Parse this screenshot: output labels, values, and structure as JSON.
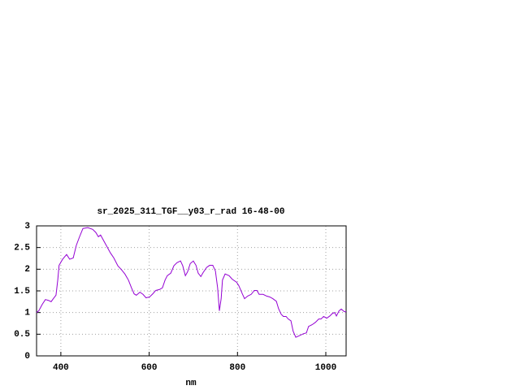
{
  "chart_data": {
    "type": "line",
    "title": "sr_2025_311_TGF__y03_r_rad 16-48-00",
    "xlabel": "nm",
    "xlim": [
      345,
      1046
    ],
    "xticks": [
      400,
      600,
      800,
      1000
    ],
    "ylim": [
      0,
      3
    ],
    "yticks": [
      0,
      0.5,
      1,
      1.5,
      2,
      2.5,
      3
    ],
    "grid": true,
    "series": [
      {
        "color": "#9400d3",
        "x": [
          345,
          350,
          358,
          365,
          372,
          378,
          383,
          389,
          393,
          396,
          404,
          413,
          420,
          428,
          435,
          442,
          450,
          461,
          472,
          479,
          485,
          490,
          498,
          505,
          512,
          520,
          529,
          538,
          545,
          553,
          560,
          566,
          571,
          579,
          586,
          593,
          601,
          608,
          615,
          623,
          630,
          636,
          641,
          649,
          656,
          663,
          671,
          676,
          682,
          687,
          693,
          700,
          706,
          711,
          717,
          722,
          730,
          737,
          744,
          750,
          755,
          759,
          763,
          766,
          772,
          781,
          788,
          798,
          803,
          811,
          816,
          823,
          831,
          838,
          844,
          849,
          858,
          866,
          873,
          880,
          888,
          893,
          899,
          904,
          910,
          915,
          921,
          926,
          932,
          941,
          949,
          956,
          961,
          969,
          976,
          984,
          989,
          995,
          1002,
          1009,
          1015,
          1020,
          1024,
          1030,
          1035,
          1042,
          1046
        ],
        "values": [
          1.0,
          1.04,
          1.19,
          1.3,
          1.28,
          1.25,
          1.32,
          1.4,
          1.75,
          2.09,
          2.23,
          2.34,
          2.23,
          2.26,
          2.55,
          2.74,
          2.94,
          2.96,
          2.92,
          2.85,
          2.75,
          2.79,
          2.64,
          2.51,
          2.38,
          2.26,
          2.08,
          1.98,
          1.89,
          1.75,
          1.57,
          1.43,
          1.4,
          1.47,
          1.42,
          1.34,
          1.36,
          1.43,
          1.51,
          1.53,
          1.57,
          1.75,
          1.85,
          1.91,
          2.08,
          2.15,
          2.19,
          2.08,
          1.85,
          1.94,
          2.13,
          2.19,
          2.09,
          1.91,
          1.83,
          1.92,
          2.04,
          2.09,
          2.09,
          1.96,
          1.57,
          1.04,
          1.32,
          1.75,
          1.89,
          1.85,
          1.77,
          1.7,
          1.62,
          1.43,
          1.32,
          1.38,
          1.42,
          1.51,
          1.51,
          1.42,
          1.42,
          1.38,
          1.36,
          1.32,
          1.26,
          1.09,
          0.96,
          0.91,
          0.91,
          0.85,
          0.81,
          0.57,
          0.43,
          0.47,
          0.51,
          0.53,
          0.68,
          0.72,
          0.77,
          0.85,
          0.85,
          0.91,
          0.87,
          0.92,
          0.98,
          1.0,
          0.92,
          1.04,
          1.08,
          1.02,
          1.02
        ]
      }
    ]
  }
}
